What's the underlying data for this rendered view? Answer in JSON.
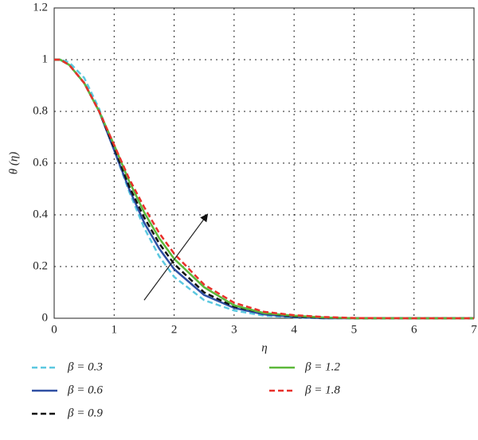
{
  "chart_data": {
    "type": "line",
    "xlabel": "η",
    "ylabel": "θ (η)",
    "x": [
      0,
      0.1,
      0.25,
      0.5,
      0.75,
      1,
      1.25,
      1.5,
      1.75,
      2,
      2.5,
      3,
      3.5,
      4,
      4.5,
      5,
      6,
      7
    ],
    "series": [
      {
        "name": "β = 0.3",
        "color": "#5bc8e0",
        "dashed": true,
        "values": [
          1,
          1.0,
          0.99,
          0.93,
          0.81,
          0.65,
          0.49,
          0.35,
          0.24,
          0.16,
          0.07,
          0.03,
          0.01,
          0.003,
          0,
          0,
          0,
          0
        ]
      },
      {
        "name": "β = 0.6",
        "color": "#2f4fa3",
        "dashed": false,
        "values": [
          1,
          1.0,
          0.98,
          0.91,
          0.8,
          0.65,
          0.5,
          0.37,
          0.27,
          0.19,
          0.09,
          0.04,
          0.015,
          0.005,
          0,
          0,
          0,
          0
        ]
      },
      {
        "name": "β = 0.9",
        "color": "#111111",
        "dashed": true,
        "values": [
          1,
          1.0,
          0.98,
          0.91,
          0.8,
          0.66,
          0.51,
          0.39,
          0.29,
          0.21,
          0.1,
          0.045,
          0.02,
          0.007,
          0.002,
          0,
          0,
          0
        ]
      },
      {
        "name": "β = 1.2",
        "color": "#5cb83a",
        "dashed": false,
        "values": [
          1,
          1.0,
          0.98,
          0.91,
          0.8,
          0.67,
          0.53,
          0.41,
          0.31,
          0.23,
          0.12,
          0.05,
          0.02,
          0.01,
          0.003,
          0,
          0,
          0
        ]
      },
      {
        "name": "β = 1.8",
        "color": "#e8302a",
        "dashed": true,
        "values": [
          1,
          1.0,
          0.98,
          0.91,
          0.8,
          0.67,
          0.54,
          0.43,
          0.33,
          0.25,
          0.13,
          0.06,
          0.025,
          0.012,
          0.005,
          0.001,
          0,
          0
        ]
      }
    ],
    "xlim": [
      0,
      7
    ],
    "xticks": [
      0,
      1,
      2,
      3,
      4,
      5,
      6,
      7
    ],
    "ylim": [
      0,
      1.2
    ],
    "yticks": [
      0,
      0.2,
      0.4,
      0.6,
      0.8,
      1,
      1.2
    ],
    "grid": true
  }
}
